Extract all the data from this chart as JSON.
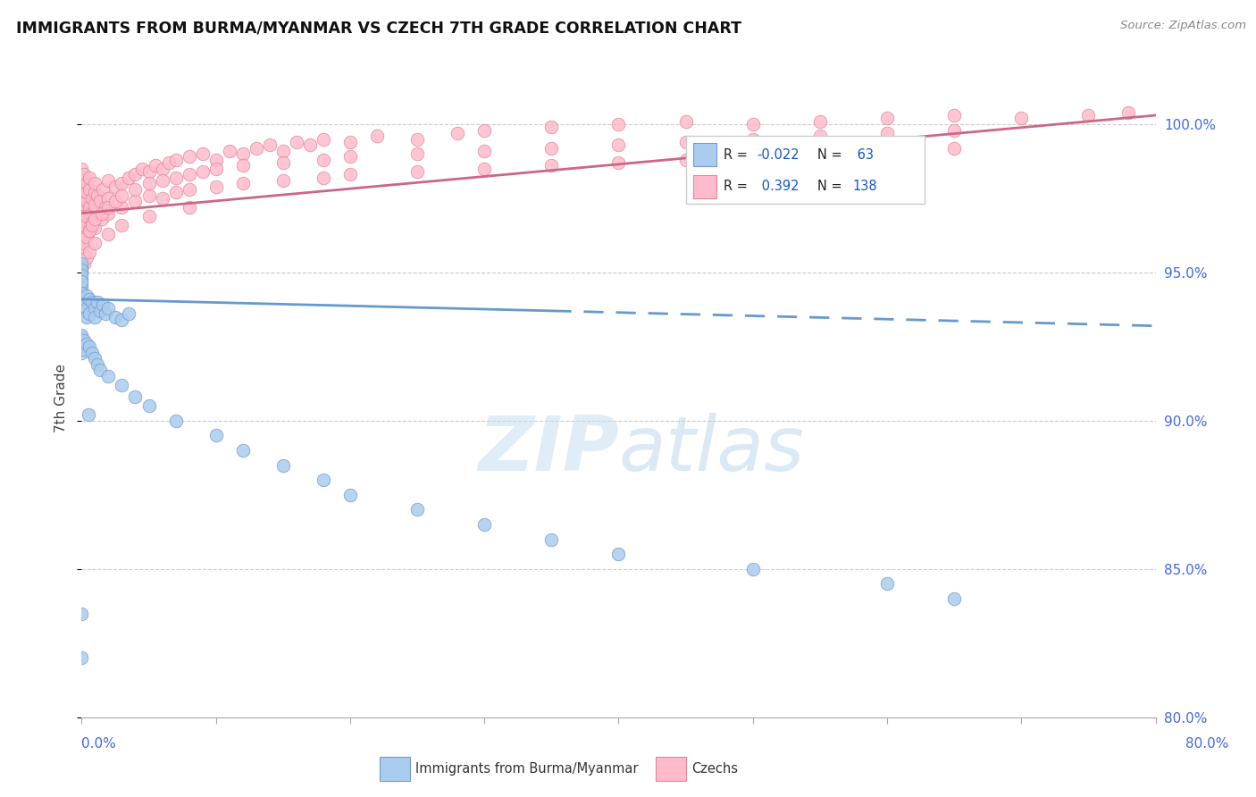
{
  "title": "IMMIGRANTS FROM BURMA/MYANMAR VS CZECH 7TH GRADE CORRELATION CHART",
  "source": "Source: ZipAtlas.com",
  "ylabel": "7th Grade",
  "xmin": 0.0,
  "xmax": 80.0,
  "ymin": 80.0,
  "ymax": 101.5,
  "yticks": [
    80.0,
    85.0,
    90.0,
    95.0,
    100.0
  ],
  "blue_R": -0.022,
  "blue_N": 63,
  "pink_R": 0.392,
  "pink_N": 138,
  "blue_color": "#aaccee",
  "blue_edge": "#7799cc",
  "pink_color": "#ffbbcc",
  "pink_edge": "#dd8899",
  "legend_blue_label": "Immigrants from Burma/Myanmar",
  "legend_pink_label": "Czechs",
  "watermark": "ZIPatlas",
  "blue_line_color": "#6699cc",
  "pink_line_color": "#cc6688",
  "blue_solid_end_x": 35.0,
  "blue_trend_x0": 0.0,
  "blue_trend_y0": 94.1,
  "blue_trend_x1": 80.0,
  "blue_trend_y1": 93.2,
  "pink_trend_x0": 0.0,
  "pink_trend_y0": 97.0,
  "pink_trend_x1": 80.0,
  "pink_trend_y1": 100.3,
  "blue_scatter_x": [
    0.0,
    0.0,
    0.0,
    0.0,
    0.0,
    0.0,
    0.0,
    0.0,
    0.0,
    0.0,
    0.2,
    0.2,
    0.2,
    0.2,
    0.4,
    0.4,
    0.4,
    0.6,
    0.6,
    0.8,
    1.0,
    1.0,
    1.2,
    1.4,
    1.6,
    1.8,
    2.0,
    2.5,
    3.0,
    3.5,
    0.0,
    0.0,
    0.0,
    0.0,
    0.0,
    0.2,
    0.2,
    0.4,
    0.6,
    0.8,
    1.0,
    1.2,
    1.4,
    2.0,
    3.0,
    4.0,
    5.0,
    7.0,
    10.0,
    12.0,
    15.0,
    18.0,
    20.0,
    25.0,
    30.0,
    35.0,
    40.0,
    50.0,
    60.0,
    65.0,
    0.0,
    0.0,
    0.5
  ],
  "blue_scatter_y": [
    94.5,
    95.0,
    95.2,
    95.3,
    95.1,
    94.8,
    94.6,
    94.9,
    94.7,
    94.3,
    94.1,
    93.9,
    94.0,
    93.7,
    94.2,
    93.8,
    93.5,
    94.1,
    93.6,
    94.0,
    93.8,
    93.5,
    94.0,
    93.7,
    93.9,
    93.6,
    93.8,
    93.5,
    93.4,
    93.6,
    92.8,
    92.5,
    92.9,
    92.6,
    92.3,
    92.7,
    92.4,
    92.6,
    92.5,
    92.3,
    92.1,
    91.9,
    91.7,
    91.5,
    91.2,
    90.8,
    90.5,
    90.0,
    89.5,
    89.0,
    88.5,
    88.0,
    87.5,
    87.0,
    86.5,
    86.0,
    85.5,
    85.0,
    84.5,
    84.0,
    83.5,
    82.0,
    90.2
  ],
  "pink_scatter_x": [
    0.0,
    0.0,
    0.0,
    0.0,
    0.0,
    0.0,
    0.0,
    0.0,
    0.0,
    0.0,
    0.2,
    0.2,
    0.2,
    0.2,
    0.2,
    0.4,
    0.4,
    0.4,
    0.4,
    0.6,
    0.6,
    0.6,
    0.8,
    0.8,
    1.0,
    1.0,
    1.0,
    1.2,
    1.4,
    1.6,
    1.8,
    2.0,
    2.0,
    2.5,
    3.0,
    3.5,
    4.0,
    4.5,
    5.0,
    5.5,
    6.0,
    6.5,
    7.0,
    8.0,
    9.0,
    10.0,
    11.0,
    12.0,
    13.0,
    14.0,
    15.0,
    16.0,
    17.0,
    18.0,
    20.0,
    22.0,
    25.0,
    28.0,
    30.0,
    35.0,
    40.0,
    45.0,
    50.0,
    55.0,
    60.0,
    65.0,
    70.0,
    75.0,
    78.0,
    0.0,
    0.0,
    0.0,
    0.2,
    0.4,
    0.6,
    0.8,
    1.0,
    1.5,
    2.0,
    3.0,
    4.0,
    5.0,
    6.0,
    7.0,
    8.0,
    10.0,
    12.0,
    15.0,
    18.0,
    20.0,
    25.0,
    30.0,
    35.0,
    40.0,
    45.0,
    50.0,
    55.0,
    60.0,
    65.0,
    0.0,
    0.2,
    0.4,
    0.6,
    0.8,
    1.0,
    1.5,
    2.0,
    2.5,
    3.0,
    4.0,
    5.0,
    6.0,
    7.0,
    8.0,
    9.0,
    10.0,
    12.0,
    15.0,
    18.0,
    20.0,
    25.0,
    30.0,
    35.0,
    40.0,
    45.0,
    50.0,
    55.0,
    60.0,
    65.0,
    0.0,
    0.2,
    0.4,
    0.6,
    1.0,
    2.0,
    3.0,
    5.0,
    8.0
  ],
  "pink_scatter_y": [
    97.2,
    97.5,
    97.8,
    98.0,
    98.2,
    98.5,
    97.0,
    96.8,
    97.3,
    97.6,
    97.9,
    98.1,
    98.3,
    97.1,
    96.9,
    97.4,
    97.7,
    98.0,
    96.7,
    97.2,
    97.8,
    98.2,
    97.5,
    97.0,
    97.3,
    97.7,
    98.0,
    97.6,
    97.4,
    97.8,
    97.2,
    97.5,
    98.1,
    97.9,
    98.0,
    98.2,
    98.3,
    98.5,
    98.4,
    98.6,
    98.5,
    98.7,
    98.8,
    98.9,
    99.0,
    98.8,
    99.1,
    99.0,
    99.2,
    99.3,
    99.1,
    99.4,
    99.3,
    99.5,
    99.4,
    99.6,
    99.5,
    99.7,
    99.8,
    99.9,
    100.0,
    100.1,
    100.0,
    100.1,
    100.2,
    100.3,
    100.2,
    100.3,
    100.4,
    96.5,
    96.2,
    96.8,
    96.6,
    96.9,
    96.4,
    96.7,
    96.5,
    96.8,
    97.0,
    97.2,
    97.4,
    97.6,
    97.5,
    97.7,
    97.8,
    97.9,
    98.0,
    98.1,
    98.2,
    98.3,
    98.4,
    98.5,
    98.6,
    98.7,
    98.8,
    98.9,
    99.0,
    99.1,
    99.2,
    95.8,
    96.0,
    96.2,
    96.4,
    96.6,
    96.8,
    97.0,
    97.2,
    97.4,
    97.6,
    97.8,
    98.0,
    98.1,
    98.2,
    98.3,
    98.4,
    98.5,
    98.6,
    98.7,
    98.8,
    98.9,
    99.0,
    99.1,
    99.2,
    99.3,
    99.4,
    99.5,
    99.6,
    99.7,
    99.8,
    95.0,
    95.3,
    95.5,
    95.7,
    96.0,
    96.3,
    96.6,
    96.9,
    97.2
  ]
}
